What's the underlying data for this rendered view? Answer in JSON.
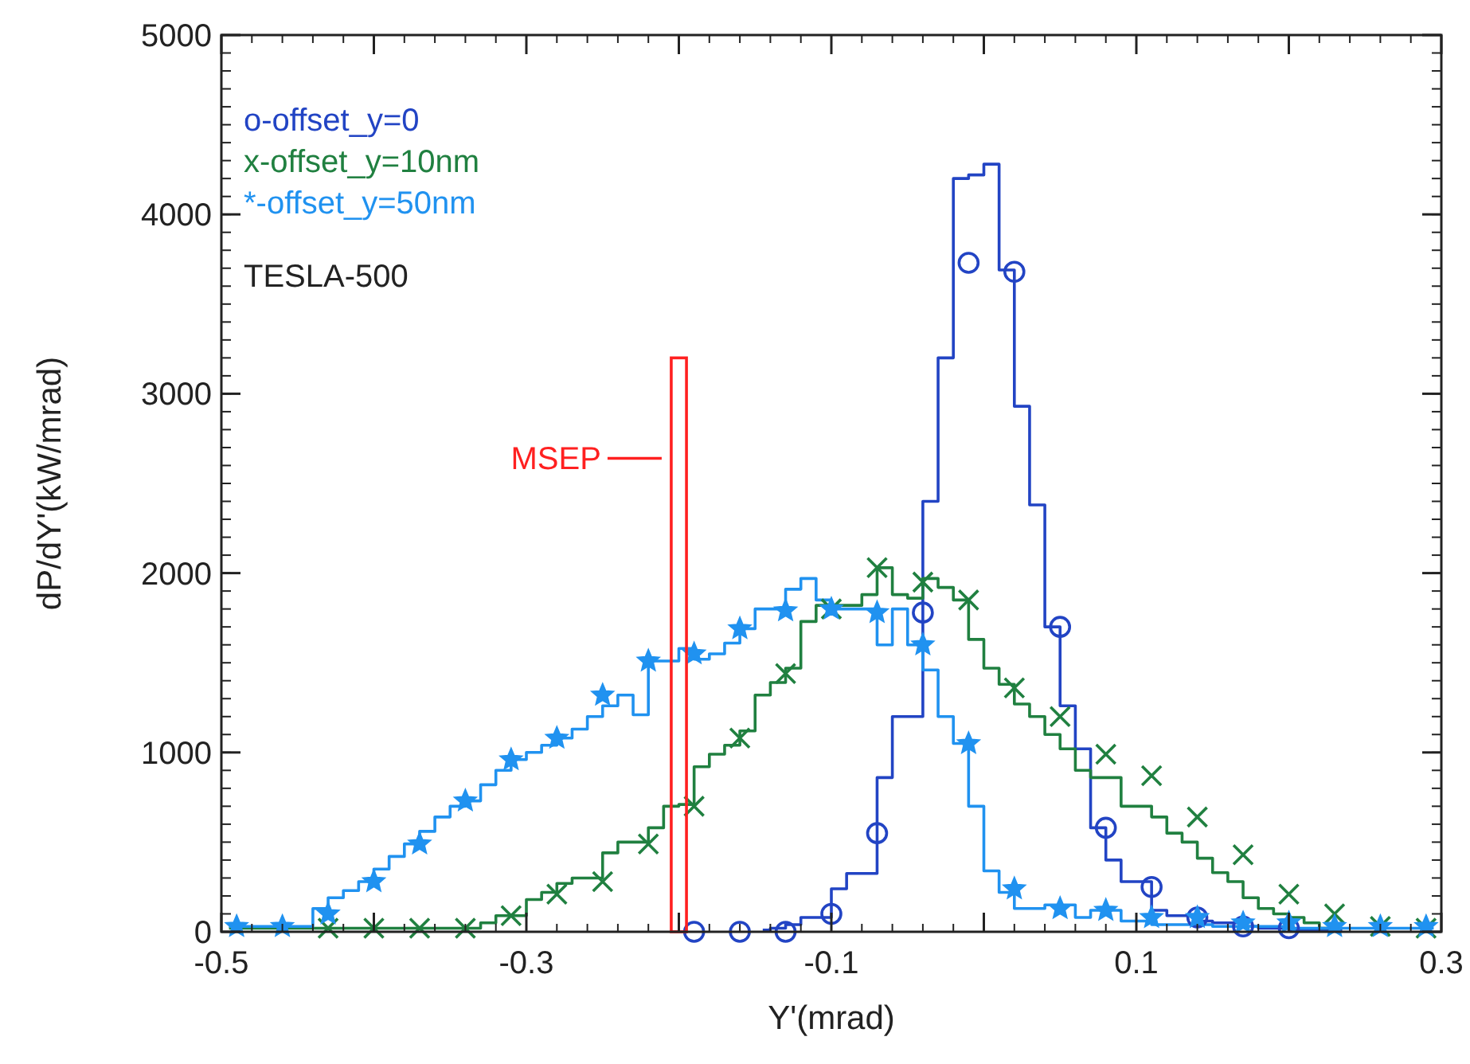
{
  "chart_data": {
    "type": "step",
    "xlabel": "Y'(mrad)",
    "ylabel": "dP/dY'(kW/mrad)",
    "x": [
      -0.495,
      -0.485,
      -0.475,
      -0.465,
      -0.455,
      -0.445,
      -0.435,
      -0.425,
      -0.415,
      -0.405,
      -0.395,
      -0.385,
      -0.375,
      -0.365,
      -0.355,
      -0.345,
      -0.335,
      -0.325,
      -0.315,
      -0.305,
      -0.295,
      -0.285,
      -0.275,
      -0.265,
      -0.255,
      -0.245,
      -0.235,
      -0.225,
      -0.215,
      -0.205,
      -0.195,
      -0.185,
      -0.175,
      -0.165,
      -0.155,
      -0.145,
      -0.135,
      -0.125,
      -0.115,
      -0.105,
      -0.095,
      -0.085,
      -0.075,
      -0.065,
      -0.055,
      -0.045,
      -0.035,
      -0.025,
      -0.015,
      -0.005,
      0.005,
      0.015,
      0.025,
      0.035,
      0.045,
      0.055,
      0.065,
      0.075,
      0.085,
      0.095,
      0.105,
      0.115,
      0.125,
      0.135,
      0.145,
      0.155,
      0.165,
      0.175,
      0.185,
      0.195,
      0.205,
      0.215,
      0.225,
      0.235,
      0.245,
      0.255,
      0.265,
      0.275,
      0.285,
      0.295
    ],
    "series": [
      {
        "name": "o-offset_y=0",
        "color": "#2244c4",
        "values": [
          null,
          null,
          null,
          null,
          null,
          null,
          null,
          null,
          null,
          null,
          null,
          null,
          null,
          null,
          null,
          null,
          null,
          null,
          null,
          null,
          null,
          null,
          null,
          null,
          null,
          null,
          null,
          null,
          null,
          null,
          null,
          null,
          null,
          null,
          null,
          10,
          20,
          40,
          80,
          80,
          240,
          325,
          325,
          860,
          1200,
          1200,
          2400,
          3200,
          4200,
          4220,
          4280,
          3690,
          2930,
          2380,
          1700,
          1260,
          1020,
          580,
          400,
          280,
          280,
          120,
          90,
          90,
          60,
          50,
          50,
          30,
          20,
          20,
          10,
          10,
          10,
          10,
          null,
          null,
          null,
          null,
          null,
          null
        ]
      },
      {
        "name": "x-offset_y=10nm",
        "color": "#208040",
        "values": [
          20,
          20,
          20,
          20,
          20,
          20,
          20,
          20,
          20,
          20,
          20,
          20,
          20,
          20,
          20,
          20,
          20,
          50,
          90,
          90,
          180,
          220,
          270,
          300,
          300,
          440,
          500,
          500,
          580,
          700,
          710,
          920,
          990,
          1040,
          1120,
          1320,
          1390,
          1470,
          1730,
          1820,
          1820,
          1820,
          1880,
          2030,
          1880,
          1860,
          1970,
          1920,
          1850,
          1630,
          1470,
          1380,
          1270,
          1200,
          1100,
          1020,
          900,
          860,
          860,
          700,
          700,
          640,
          550,
          500,
          410,
          330,
          280,
          190,
          130,
          100,
          80,
          50,
          20,
          20,
          null,
          null,
          null,
          null,
          null,
          null
        ]
      },
      {
        "name": "*-offset_y=50nm",
        "color": "#2092f0",
        "values": [
          30,
          30,
          30,
          30,
          30,
          30,
          130,
          190,
          230,
          280,
          350,
          420,
          490,
          560,
          640,
          700,
          730,
          820,
          900,
          960,
          1000,
          1040,
          1080,
          1130,
          1200,
          1260,
          1320,
          1210,
          1510,
          1510,
          1580,
          1520,
          1550,
          1610,
          1690,
          1800,
          1800,
          1910,
          1970,
          1850,
          1800,
          1800,
          1800,
          1600,
          1800,
          1600,
          1460,
          1200,
          1050,
          700,
          340,
          220,
          130,
          130,
          150,
          150,
          80,
          120,
          120,
          60,
          60,
          40,
          40,
          40,
          40,
          30,
          30,
          30,
          30,
          30,
          20,
          20,
          20,
          20,
          20,
          20,
          20,
          20,
          20,
          20
        ]
      },
      {
        "type": "scatter",
        "color": "#2244c4",
        "marker": "circle",
        "x": [
          -0.19,
          -0.16,
          -0.13,
          -0.1,
          -0.07,
          -0.04,
          -0.01,
          0.02,
          0.05,
          0.08,
          0.11,
          0.14,
          0.17,
          0.2
        ],
        "values": [
          0,
          0,
          0,
          100,
          550,
          1780,
          3730,
          3680,
          1700,
          580,
          250,
          80,
          30,
          20
        ]
      },
      {
        "type": "scatter",
        "color": "#208040",
        "marker": "cross",
        "x": [
          -0.43,
          -0.4,
          -0.37,
          -0.34,
          -0.31,
          -0.28,
          -0.25,
          -0.22,
          -0.19,
          -0.16,
          -0.13,
          -0.1,
          -0.07,
          -0.04,
          -0.01,
          0.02,
          0.05,
          0.08,
          0.11,
          0.14,
          0.17,
          0.2,
          0.23,
          0.26,
          0.29
        ],
        "values": [
          20,
          20,
          20,
          20,
          90,
          210,
          280,
          490,
          700,
          1080,
          1440,
          1800,
          2030,
          1950,
          1850,
          1360,
          1200,
          990,
          870,
          640,
          430,
          210,
          100,
          30,
          20
        ]
      },
      {
        "type": "scatter",
        "color": "#2092f0",
        "marker": "star",
        "x": [
          -0.49,
          -0.46,
          -0.43,
          -0.4,
          -0.37,
          -0.34,
          -0.31,
          -0.28,
          -0.25,
          -0.22,
          -0.19,
          -0.16,
          -0.13,
          -0.1,
          -0.07,
          -0.04,
          -0.01,
          0.02,
          0.05,
          0.08,
          0.11,
          0.14,
          0.17,
          0.2,
          0.23,
          0.26,
          0.29
        ],
        "values": [
          30,
          30,
          100,
          280,
          490,
          730,
          960,
          1080,
          1320,
          1510,
          1550,
          1690,
          1790,
          1800,
          1780,
          1600,
          1050,
          240,
          130,
          120,
          80,
          80,
          50,
          50,
          30,
          30,
          30
        ]
      },
      {
        "type": "histogram",
        "color": "#ff2020",
        "bins": [
          -0.205,
          -0.195
        ],
        "values": [
          3200
        ]
      }
    ],
    "annotations": [
      "TESLA-500",
      {
        "text": "MSEP",
        "x": -0.205,
        "y": 2640
      }
    ],
    "xlim": [
      -0.5,
      0.3
    ],
    "ylim": [
      0,
      5000
    ],
    "xticks": [
      -0.5,
      {
        "value": -0.4,
        "label": null
      },
      -0.3,
      {
        "value": -0.2,
        "label": null
      },
      -0.1,
      {
        "value": 0,
        "label": null
      },
      0.1,
      {
        "value": 0.2,
        "label": null
      },
      0.3
    ],
    "yticks": [
      0,
      1000,
      2000,
      3000,
      4000,
      5000
    ],
    "legend": "top left"
  }
}
